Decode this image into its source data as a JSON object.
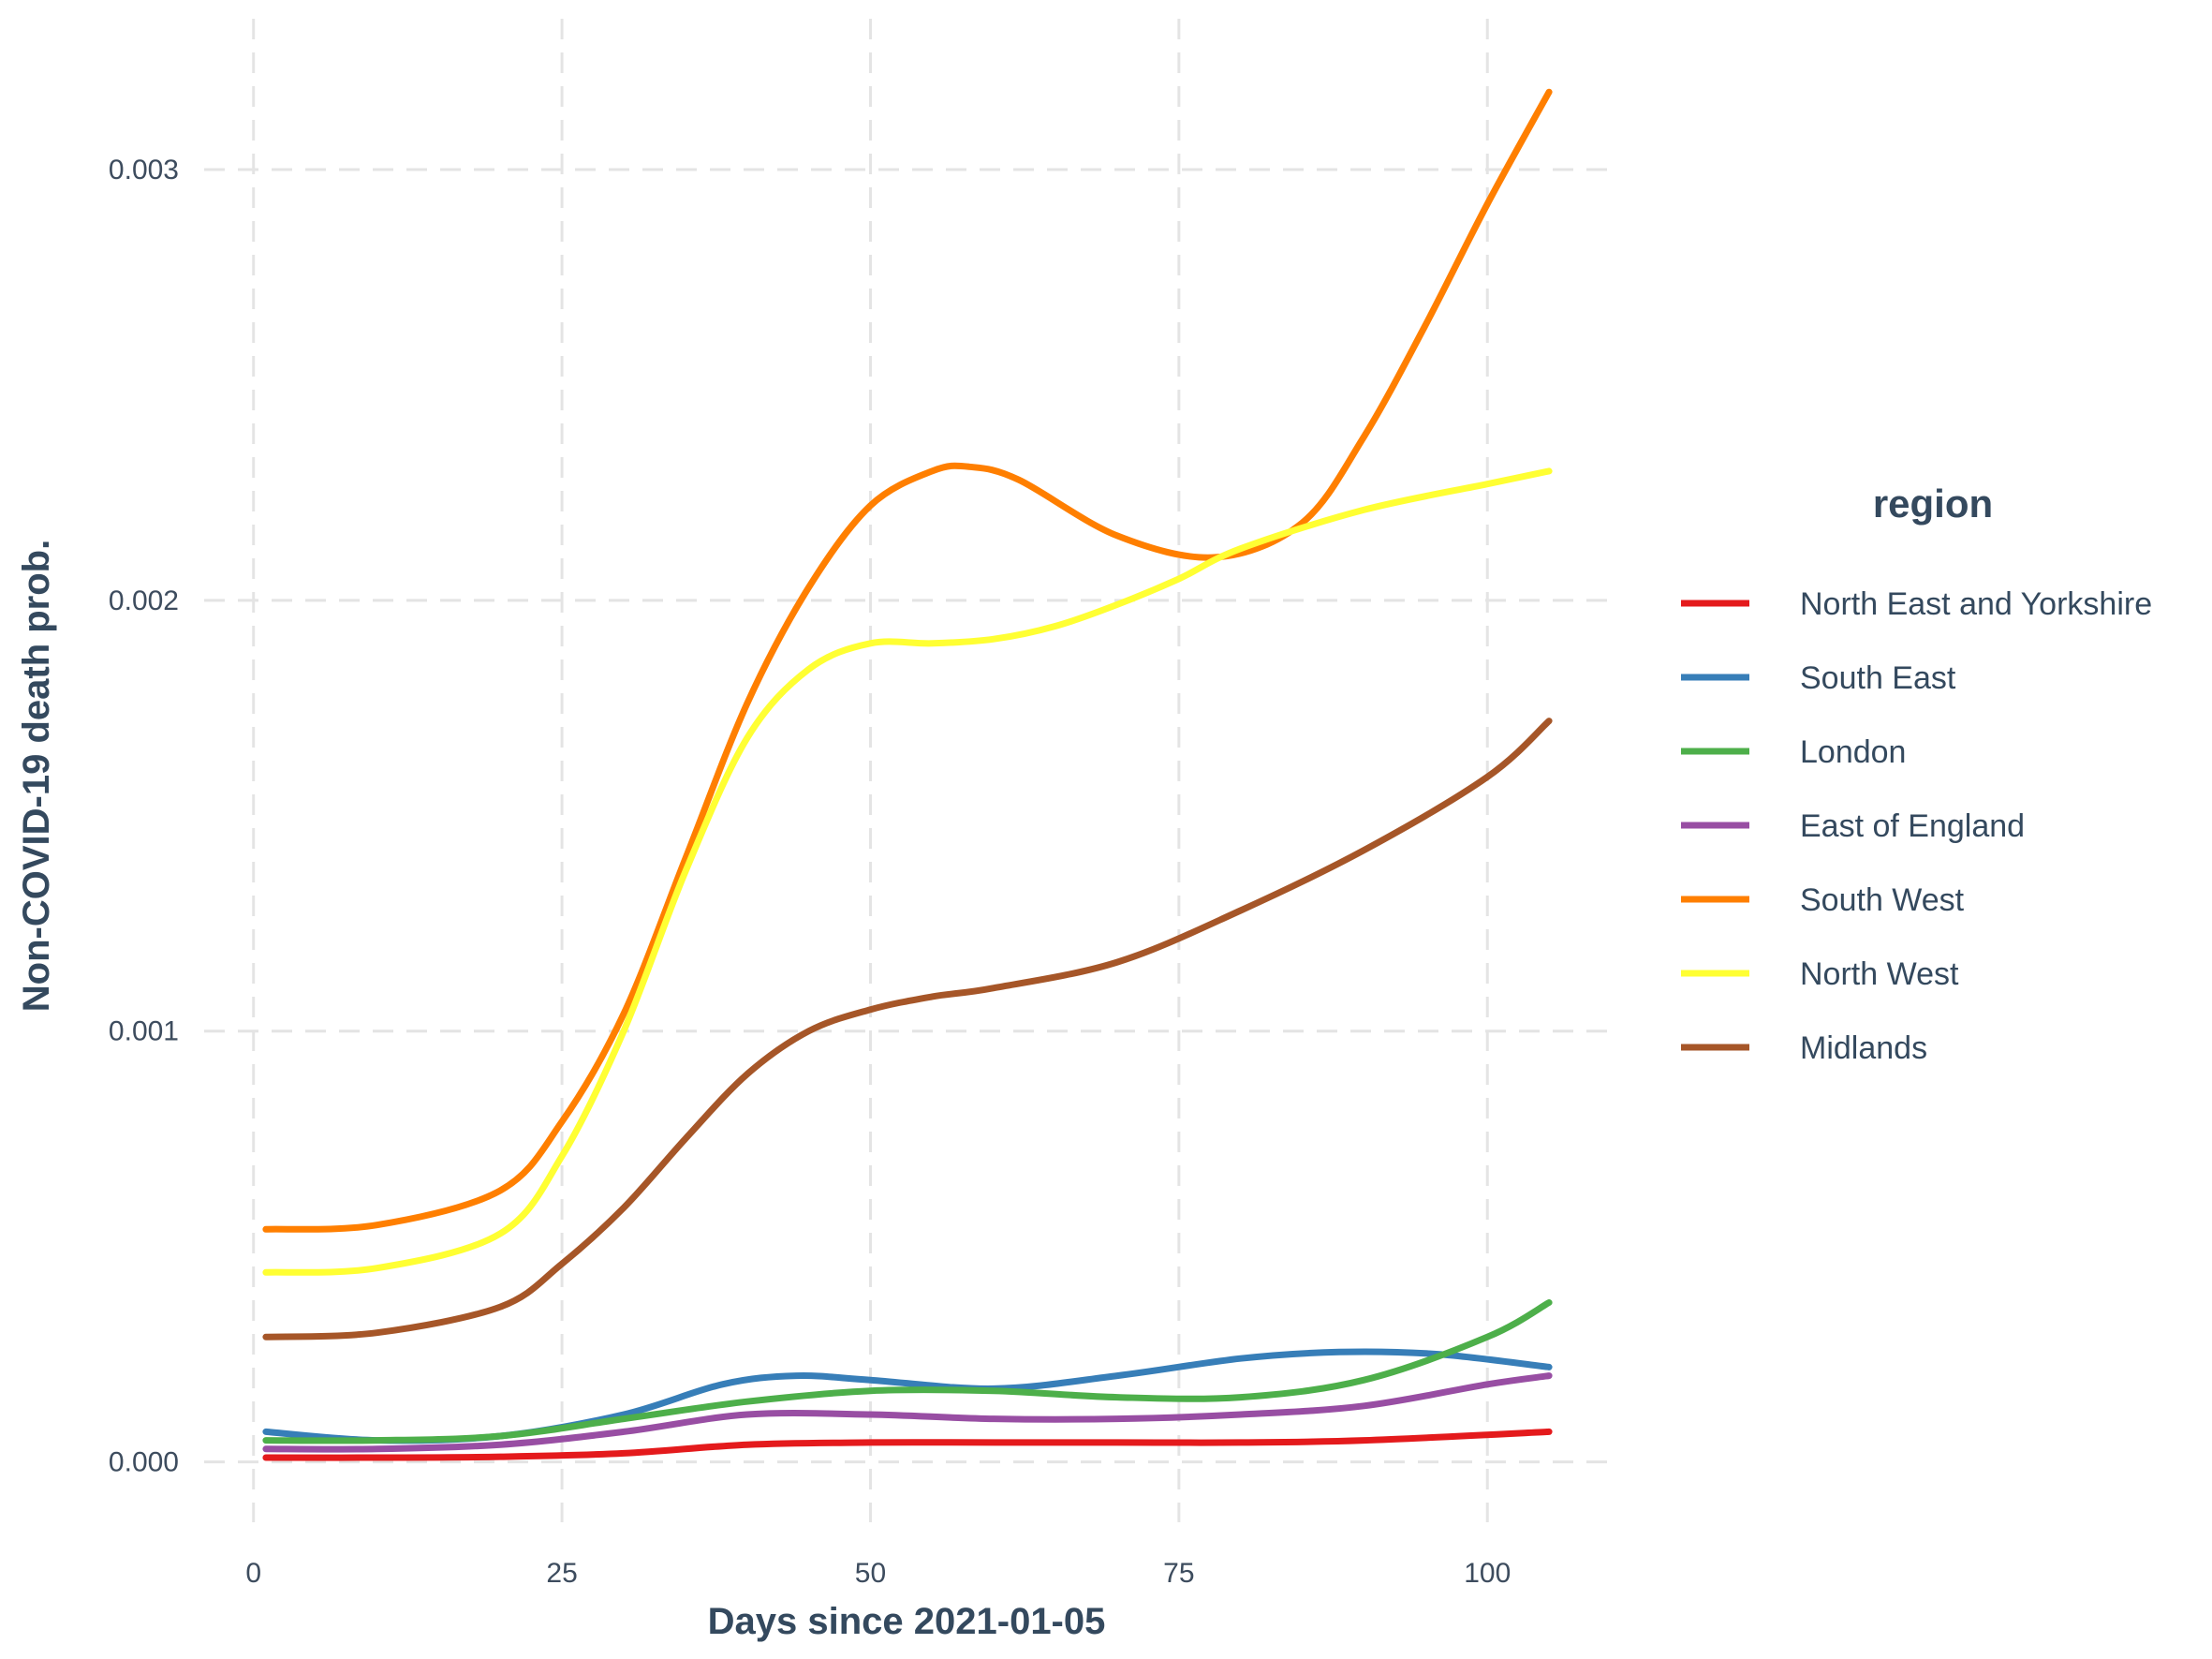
{
  "chart_data": {
    "type": "line",
    "title": "",
    "xlabel": "Days since 2021-01-05",
    "ylabel": "Non-COVID-19 death prob.",
    "xlim": [
      -4,
      110
    ],
    "ylim": [
      -0.00014,
      0.00335
    ],
    "x_ticks": [
      0,
      25,
      50,
      75,
      100
    ],
    "x_tick_labels": [
      "0",
      "25",
      "50",
      "75",
      "100"
    ],
    "y_ticks": [
      0,
      0.001,
      0.002,
      0.003
    ],
    "y_tick_labels": [
      "0.000",
      "0.001",
      "0.002",
      "0.003"
    ],
    "grid": true,
    "legend": {
      "title": "region",
      "position": "right"
    },
    "series": [
      {
        "name": "North East and Yorkshire",
        "color": "#e41a1c",
        "x": [
          1,
          10,
          20,
          30,
          40,
          50,
          60,
          70,
          80,
          90,
          105
        ],
        "values": [
          1e-05,
          1e-05,
          1.2e-05,
          2e-05,
          4e-05,
          4.5e-05,
          4.5e-05,
          4.5e-05,
          4.5e-05,
          5e-05,
          7e-05
        ]
      },
      {
        "name": "South East",
        "color": "#377eb8",
        "x": [
          1,
          10,
          20,
          30,
          38,
          44,
          50,
          60,
          70,
          80,
          88,
          96,
          105
        ],
        "values": [
          7e-05,
          5e-05,
          6e-05,
          0.00011,
          0.00018,
          0.0002,
          0.00019,
          0.00017,
          0.0002,
          0.00024,
          0.000255,
          0.00025,
          0.00022
        ]
      },
      {
        "name": "London",
        "color": "#4daf4a",
        "x": [
          1,
          10,
          20,
          30,
          40,
          50,
          60,
          70,
          80,
          90,
          100,
          105
        ],
        "values": [
          5e-05,
          5e-05,
          6e-05,
          0.0001,
          0.00014,
          0.000165,
          0.000165,
          0.00015,
          0.00015,
          0.00019,
          0.00029,
          0.00037
        ]
      },
      {
        "name": "East of England",
        "color": "#984ea3",
        "x": [
          1,
          10,
          20,
          30,
          40,
          50,
          60,
          70,
          80,
          90,
          100,
          105
        ],
        "values": [
          3e-05,
          3e-05,
          4e-05,
          7e-05,
          0.00011,
          0.00011,
          0.0001,
          0.0001,
          0.00011,
          0.00013,
          0.00018,
          0.0002
        ]
      },
      {
        "name": "South West",
        "color": "#ff7f00",
        "x": [
          1,
          10,
          20,
          25,
          30,
          35,
          40,
          45,
          50,
          55,
          58,
          62,
          70,
          78,
          85,
          90,
          95,
          100,
          105
        ],
        "values": [
          0.00054,
          0.00055,
          0.00063,
          0.00079,
          0.00104,
          0.0014,
          0.00176,
          0.00203,
          0.00222,
          0.0023,
          0.00231,
          0.00228,
          0.00215,
          0.0021,
          0.00218,
          0.00238,
          0.00264,
          0.00292,
          0.00318
        ]
      },
      {
        "name": "North West",
        "color": "#ffff33",
        "x": [
          1,
          10,
          20,
          25,
          30,
          35,
          40,
          45,
          50,
          55,
          60,
          65,
          70,
          75,
          80,
          90,
          100,
          105
        ],
        "values": [
          0.00044,
          0.00045,
          0.00053,
          0.00071,
          0.001,
          0.00137,
          0.00168,
          0.00184,
          0.0019,
          0.0019,
          0.00191,
          0.00194,
          0.00199,
          0.00205,
          0.00212,
          0.00221,
          0.00227,
          0.0023
        ]
      },
      {
        "name": "Midlands",
        "color": "#a65628",
        "x": [
          1,
          10,
          20,
          25,
          30,
          35,
          40,
          45,
          50,
          55,
          60,
          70,
          80,
          90,
          100,
          105
        ],
        "values": [
          0.00029,
          0.0003,
          0.00036,
          0.00046,
          0.00059,
          0.00075,
          0.0009,
          0.001,
          0.00105,
          0.00108,
          0.0011,
          0.00116,
          0.00128,
          0.00142,
          0.00159,
          0.00172
        ]
      }
    ]
  }
}
